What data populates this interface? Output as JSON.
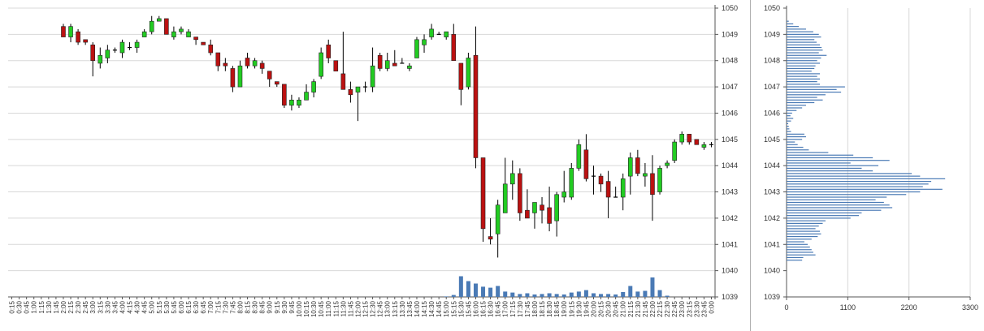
{
  "colors": {
    "up": "#22cc22",
    "down": "#bb1111",
    "wick": "#000000",
    "volume": "#4a7ab5",
    "grid": "#d8d8d8",
    "axis": "#555555"
  },
  "chart_data": [
    {
      "type": "candlestick",
      "title": "",
      "ylim": [
        1039,
        1050
      ],
      "y_ticks": [
        "1039",
        "1040",
        "1041",
        "1042",
        "1043",
        "1044",
        "1045",
        "1046",
        "1047",
        "1048",
        "1049",
        "1050"
      ],
      "y_axis_position": "right",
      "grid": true,
      "x_labels": [
        "0:15",
        "0:30",
        "0:45",
        "1:00",
        "1:15",
        "1:30",
        "1:45",
        "2:00",
        "2:15",
        "2:30",
        "2:45",
        "3:00",
        "3:15",
        "3:30",
        "3:45",
        "4:00",
        "4:15",
        "4:30",
        "4:45",
        "5:00",
        "5:15",
        "5:30",
        "5:45",
        "6:00",
        "6:15",
        "6:30",
        "6:45",
        "7:00",
        "7:15",
        "7:30",
        "7:45",
        "8:00",
        "8:15",
        "8:30",
        "8:45",
        "9:00",
        "9:15",
        "9:30",
        "9:45",
        "10:00",
        "10:15",
        "10:30",
        "10:45",
        "11:00",
        "11:15",
        "11:30",
        "11:45",
        "12:00",
        "12:15",
        "12:30",
        "12:45",
        "13:00",
        "13:15",
        "13:30",
        "13:45",
        "14:00",
        "14:15",
        "14:30",
        "14:45",
        "15:00",
        "15:15",
        "15:30",
        "15:45",
        "16:00",
        "16:15",
        "16:30",
        "16:45",
        "17:00",
        "17:15",
        "17:30",
        "17:45",
        "18:00",
        "18:15",
        "18:30",
        "18:45",
        "19:00",
        "19:15",
        "19:30",
        "19:45",
        "20:00",
        "20:15",
        "20:30",
        "20:45",
        "21:00",
        "21:15",
        "21:30",
        "21:45",
        "22:00",
        "22:15",
        "22:30",
        "22:45",
        "23:00",
        "23:15",
        "23:30",
        "23:45",
        "0:00"
      ],
      "candles": [
        {
          "x": "2:00",
          "o": 1049.3,
          "h": 1049.4,
          "l": 1048.9,
          "c": 1048.9
        },
        {
          "x": "2:15",
          "o": 1048.9,
          "h": 1049.4,
          "l": 1048.7,
          "c": 1049.3
        },
        {
          "x": "2:30",
          "o": 1049.1,
          "h": 1049.2,
          "l": 1048.6,
          "c": 1048.7
        },
        {
          "x": "2:45",
          "o": 1048.8,
          "h": 1048.8,
          "l": 1048.6,
          "c": 1048.7
        },
        {
          "x": "3:00",
          "o": 1048.6,
          "h": 1048.7,
          "l": 1047.4,
          "c": 1048.0
        },
        {
          "x": "3:15",
          "o": 1047.9,
          "h": 1048.5,
          "l": 1047.7,
          "c": 1048.2
        },
        {
          "x": "3:30",
          "o": 1048.1,
          "h": 1048.6,
          "l": 1047.9,
          "c": 1048.4
        },
        {
          "x": "3:45",
          "o": 1048.4,
          "h": 1048.5,
          "l": 1048.3,
          "c": 1048.4
        },
        {
          "x": "4:00",
          "o": 1048.3,
          "h": 1048.8,
          "l": 1048.1,
          "c": 1048.7
        },
        {
          "x": "4:15",
          "o": 1048.5,
          "h": 1048.7,
          "l": 1048.4,
          "c": 1048.5
        },
        {
          "x": "4:30",
          "o": 1048.5,
          "h": 1048.8,
          "l": 1048.3,
          "c": 1048.7
        },
        {
          "x": "4:45",
          "o": 1048.9,
          "h": 1049.2,
          "l": 1048.9,
          "c": 1049.1
        },
        {
          "x": "5:00",
          "o": 1049.1,
          "h": 1049.7,
          "l": 1049.0,
          "c": 1049.5
        },
        {
          "x": "5:15",
          "o": 1049.5,
          "h": 1049.7,
          "l": 1049.5,
          "c": 1049.6
        },
        {
          "x": "5:30",
          "o": 1049.6,
          "h": 1049.6,
          "l": 1049.0,
          "c": 1049.0
        },
        {
          "x": "5:45",
          "o": 1048.9,
          "h": 1049.3,
          "l": 1048.8,
          "c": 1049.1
        },
        {
          "x": "6:00",
          "o": 1049.1,
          "h": 1049.3,
          "l": 1049.0,
          "c": 1049.2
        },
        {
          "x": "6:15",
          "o": 1048.9,
          "h": 1049.2,
          "l": 1048.9,
          "c": 1049.1
        },
        {
          "x": "6:30",
          "o": 1048.9,
          "h": 1048.9,
          "l": 1048.6,
          "c": 1048.8
        },
        {
          "x": "6:45",
          "o": 1048.7,
          "h": 1048.7,
          "l": 1048.6,
          "c": 1048.6
        },
        {
          "x": "7:00",
          "o": 1048.6,
          "h": 1048.8,
          "l": 1048.2,
          "c": 1048.3
        },
        {
          "x": "7:15",
          "o": 1048.3,
          "h": 1048.3,
          "l": 1047.6,
          "c": 1047.8
        },
        {
          "x": "7:30",
          "o": 1047.9,
          "h": 1048.1,
          "l": 1047.6,
          "c": 1047.8
        },
        {
          "x": "7:45",
          "o": 1047.7,
          "h": 1047.8,
          "l": 1046.8,
          "c": 1047.0
        },
        {
          "x": "8:00",
          "o": 1047.0,
          "h": 1048.0,
          "l": 1047.0,
          "c": 1047.8
        },
        {
          "x": "8:15",
          "o": 1048.1,
          "h": 1048.3,
          "l": 1047.7,
          "c": 1047.8
        },
        {
          "x": "8:30",
          "o": 1047.8,
          "h": 1048.1,
          "l": 1047.7,
          "c": 1048.0
        },
        {
          "x": "8:45",
          "o": 1047.9,
          "h": 1048.0,
          "l": 1047.5,
          "c": 1047.7
        },
        {
          "x": "9:00",
          "o": 1047.6,
          "h": 1047.6,
          "l": 1047.0,
          "c": 1047.3
        },
        {
          "x": "9:15",
          "o": 1047.2,
          "h": 1047.2,
          "l": 1047.0,
          "c": 1047.1
        },
        {
          "x": "9:30",
          "o": 1047.1,
          "h": 1047.1,
          "l": 1046.2,
          "c": 1046.3
        },
        {
          "x": "9:45",
          "o": 1046.3,
          "h": 1046.7,
          "l": 1046.1,
          "c": 1046.5
        },
        {
          "x": "10:00",
          "o": 1046.3,
          "h": 1046.6,
          "l": 1046.2,
          "c": 1046.5
        },
        {
          "x": "10:15",
          "o": 1046.5,
          "h": 1047.1,
          "l": 1046.5,
          "c": 1046.8
        },
        {
          "x": "10:30",
          "o": 1046.8,
          "h": 1047.3,
          "l": 1046.6,
          "c": 1047.2
        },
        {
          "x": "10:45",
          "o": 1047.4,
          "h": 1048.5,
          "l": 1047.3,
          "c": 1048.3
        },
        {
          "x": "11:00",
          "o": 1048.6,
          "h": 1048.8,
          "l": 1047.9,
          "c": 1048.1
        },
        {
          "x": "11:15",
          "o": 1048.0,
          "h": 1048.0,
          "l": 1047.6,
          "c": 1047.6
        },
        {
          "x": "11:30",
          "o": 1047.5,
          "h": 1049.1,
          "l": 1046.9,
          "c": 1046.9
        },
        {
          "x": "11:45",
          "o": 1046.9,
          "h": 1047.2,
          "l": 1046.4,
          "c": 1046.7
        },
        {
          "x": "12:00",
          "o": 1046.8,
          "h": 1047.0,
          "l": 1045.7,
          "c": 1047.0
        },
        {
          "x": "12:15",
          "o": 1047.0,
          "h": 1047.2,
          "l": 1046.8,
          "c": 1047.0
        },
        {
          "x": "12:30",
          "o": 1047.0,
          "h": 1048.5,
          "l": 1046.8,
          "c": 1047.8
        },
        {
          "x": "12:45",
          "o": 1048.2,
          "h": 1048.3,
          "l": 1047.6,
          "c": 1047.7
        },
        {
          "x": "13:00",
          "o": 1047.7,
          "h": 1048.3,
          "l": 1047.6,
          "c": 1048.0
        },
        {
          "x": "13:15",
          "o": 1047.9,
          "h": 1048.4,
          "l": 1047.9,
          "c": 1047.8
        },
        {
          "x": "13:30",
          "o": 1047.9,
          "h": 1048.1,
          "l": 1047.9,
          "c": 1047.9
        },
        {
          "x": "13:45",
          "o": 1047.7,
          "h": 1047.9,
          "l": 1047.6,
          "c": 1047.8
        },
        {
          "x": "14:00",
          "o": 1048.1,
          "h": 1048.9,
          "l": 1048.1,
          "c": 1048.8
        },
        {
          "x": "14:15",
          "o": 1048.6,
          "h": 1049.0,
          "l": 1048.3,
          "c": 1048.8
        },
        {
          "x": "14:30",
          "o": 1048.9,
          "h": 1049.4,
          "l": 1048.8,
          "c": 1049.2
        },
        {
          "x": "14:45",
          "o": 1049.0,
          "h": 1049.1,
          "l": 1049.0,
          "c": 1049.0
        },
        {
          "x": "15:00",
          "o": 1048.9,
          "h": 1049.1,
          "l": 1048.8,
          "c": 1049.1
        },
        {
          "x": "15:15",
          "o": 1049.0,
          "h": 1049.4,
          "l": 1048.0,
          "c": 1048.0
        },
        {
          "x": "15:30",
          "o": 1047.9,
          "h": 1047.9,
          "l": 1046.3,
          "c": 1046.9
        },
        {
          "x": "15:45",
          "o": 1047.0,
          "h": 1048.3,
          "l": 1046.9,
          "c": 1048.1
        },
        {
          "x": "16:00",
          "o": 1048.2,
          "h": 1049.3,
          "l": 1043.9,
          "c": 1044.3
        },
        {
          "x": "16:15",
          "o": 1044.3,
          "h": 1044.3,
          "l": 1041.1,
          "c": 1041.6
        },
        {
          "x": "16:30",
          "o": 1041.3,
          "h": 1042.0,
          "l": 1041.0,
          "c": 1041.2
        },
        {
          "x": "16:45",
          "o": 1041.4,
          "h": 1042.7,
          "l": 1040.5,
          "c": 1042.5
        },
        {
          "x": "17:00",
          "o": 1042.2,
          "h": 1044.3,
          "l": 1042.2,
          "c": 1043.3
        },
        {
          "x": "17:15",
          "o": 1043.3,
          "h": 1044.2,
          "l": 1042.7,
          "c": 1043.7
        },
        {
          "x": "17:30",
          "o": 1043.7,
          "h": 1043.9,
          "l": 1041.9,
          "c": 1042.2
        },
        {
          "x": "17:45",
          "o": 1042.3,
          "h": 1043.1,
          "l": 1042.0,
          "c": 1042.0
        },
        {
          "x": "18:00",
          "o": 1042.2,
          "h": 1042.6,
          "l": 1041.6,
          "c": 1042.6
        },
        {
          "x": "18:15",
          "o": 1042.5,
          "h": 1042.8,
          "l": 1041.8,
          "c": 1042.3
        },
        {
          "x": "18:30",
          "o": 1042.4,
          "h": 1043.2,
          "l": 1041.5,
          "c": 1041.8
        },
        {
          "x": "18:45",
          "o": 1041.9,
          "h": 1043.0,
          "l": 1041.3,
          "c": 1042.9
        },
        {
          "x": "19:00",
          "o": 1042.8,
          "h": 1043.8,
          "l": 1042.6,
          "c": 1043.0
        },
        {
          "x": "19:15",
          "o": 1042.8,
          "h": 1044.1,
          "l": 1042.7,
          "c": 1043.9
        },
        {
          "x": "19:30",
          "o": 1043.9,
          "h": 1045.0,
          "l": 1043.8,
          "c": 1044.8
        },
        {
          "x": "19:45",
          "o": 1044.6,
          "h": 1045.2,
          "l": 1043.4,
          "c": 1043.5
        },
        {
          "x": "20:00",
          "o": 1043.6,
          "h": 1044.0,
          "l": 1042.9,
          "c": 1043.6
        },
        {
          "x": "20:15",
          "o": 1043.6,
          "h": 1043.7,
          "l": 1043.0,
          "c": 1043.3
        },
        {
          "x": "20:30",
          "o": 1043.4,
          "h": 1043.8,
          "l": 1042.0,
          "c": 1042.8
        },
        {
          "x": "20:45",
          "o": 1042.8,
          "h": 1043.2,
          "l": 1042.8,
          "c": 1042.8
        },
        {
          "x": "21:00",
          "o": 1042.8,
          "h": 1043.7,
          "l": 1042.3,
          "c": 1043.5
        },
        {
          "x": "21:15",
          "o": 1043.6,
          "h": 1044.5,
          "l": 1042.9,
          "c": 1044.3
        },
        {
          "x": "21:30",
          "o": 1044.3,
          "h": 1044.6,
          "l": 1043.6,
          "c": 1043.7
        },
        {
          "x": "21:45",
          "o": 1043.6,
          "h": 1044.1,
          "l": 1043.2,
          "c": 1043.7
        },
        {
          "x": "22:00",
          "o": 1043.7,
          "h": 1044.4,
          "l": 1041.9,
          "c": 1042.9
        },
        {
          "x": "22:15",
          "o": 1043.0,
          "h": 1044.0,
          "l": 1042.9,
          "c": 1043.9
        },
        {
          "x": "22:30",
          "o": 1044.0,
          "h": 1044.2,
          "l": 1043.9,
          "c": 1044.1
        },
        {
          "x": "22:45",
          "o": 1044.2,
          "h": 1045.0,
          "l": 1044.1,
          "c": 1044.9
        },
        {
          "x": "23:00",
          "o": 1044.9,
          "h": 1045.3,
          "l": 1044.8,
          "c": 1045.2
        },
        {
          "x": "23:15",
          "o": 1045.2,
          "h": 1045.2,
          "l": 1044.8,
          "c": 1044.9
        },
        {
          "x": "23:30",
          "o": 1045.0,
          "h": 1045.0,
          "l": 1044.8,
          "c": 1044.8
        },
        {
          "x": "23:45",
          "o": 1044.7,
          "h": 1044.9,
          "l": 1044.6,
          "c": 1044.8
        },
        {
          "x": "0:00",
          "o": 1044.8,
          "h": 1044.9,
          "l": 1044.7,
          "c": 1044.8
        }
      ],
      "volume": {
        "x": [
          "15:00",
          "15:15",
          "15:30",
          "15:45",
          "16:00",
          "16:15",
          "16:30",
          "16:45",
          "17:00",
          "17:15",
          "17:30",
          "17:45",
          "18:00",
          "18:15",
          "18:30",
          "18:45",
          "19:00",
          "19:15",
          "19:30",
          "19:45",
          "20:00",
          "20:15",
          "20:30",
          "20:45",
          "21:00",
          "21:15",
          "21:30",
          "21:45",
          "22:00",
          "22:15",
          "22:30"
        ],
        "values": [
          2,
          8,
          85,
          65,
          55,
          42,
          38,
          45,
          22,
          18,
          12,
          15,
          10,
          12,
          15,
          12,
          10,
          18,
          22,
          28,
          15,
          12,
          12,
          10,
          20,
          45,
          22,
          25,
          80,
          28,
          5
        ]
      }
    },
    {
      "type": "bar",
      "orientation": "horizontal",
      "title": "",
      "xlim": [
        0,
        3300
      ],
      "x_ticks": [
        "0",
        "1100",
        "2200",
        "3300"
      ],
      "ylim": [
        1039,
        1050
      ],
      "y_ticks": [
        "1039",
        "1040",
        "1041",
        "1042",
        "1043",
        "1044",
        "1045",
        "1046",
        "1047",
        "1048",
        "1049",
        "1050"
      ],
      "grid": true,
      "price_levels": [
        1040.4,
        1040.5,
        1040.6,
        1040.7,
        1040.8,
        1040.9,
        1041.0,
        1041.1,
        1041.2,
        1041.3,
        1041.4,
        1041.5,
        1041.6,
        1041.7,
        1041.8,
        1041.9,
        1042.0,
        1042.1,
        1042.2,
        1042.3,
        1042.4,
        1042.5,
        1042.6,
        1042.7,
        1042.8,
        1042.9,
        1043.0,
        1043.1,
        1043.2,
        1043.3,
        1043.4,
        1043.5,
        1043.6,
        1043.7,
        1043.8,
        1043.9,
        1044.0,
        1044.1,
        1044.2,
        1044.3,
        1044.4,
        1044.5,
        1044.6,
        1044.7,
        1044.8,
        1044.9,
        1045.0,
        1045.1,
        1045.2,
        1045.3,
        1045.4,
        1045.5,
        1045.6,
        1045.7,
        1045.8,
        1045.9,
        1046.0,
        1046.1,
        1046.2,
        1046.3,
        1046.4,
        1046.5,
        1046.6,
        1046.7,
        1046.8,
        1046.9,
        1047.0,
        1047.1,
        1047.2,
        1047.3,
        1047.4,
        1047.5,
        1047.6,
        1047.7,
        1047.8,
        1047.9,
        1048.0,
        1048.1,
        1048.2,
        1048.3,
        1048.4,
        1048.5,
        1048.6,
        1048.7,
        1048.8,
        1048.9,
        1049.0,
        1049.1,
        1049.2,
        1049.3,
        1049.4,
        1049.5
      ],
      "values": [
        280,
        300,
        520,
        480,
        450,
        420,
        380,
        320,
        450,
        560,
        620,
        600,
        520,
        580,
        650,
        700,
        1150,
        1300,
        1350,
        1700,
        1900,
        1850,
        1750,
        1600,
        1800,
        2150,
        2400,
        2800,
        2450,
        2550,
        2600,
        2850,
        2400,
        2250,
        1550,
        1350,
        1650,
        1150,
        1850,
        1550,
        1200,
        750,
        400,
        300,
        200,
        150,
        280,
        350,
        320,
        80,
        50,
        40,
        30,
        80,
        120,
        70,
        100,
        180,
        280,
        350,
        500,
        650,
        550,
        700,
        980,
        900,
        1050,
        600,
        550,
        600,
        550,
        600,
        450,
        500,
        520,
        600,
        550,
        620,
        720,
        580,
        650,
        630,
        600,
        540,
        500,
        620,
        580,
        480,
        350,
        220,
        120,
        40
      ]
    }
  ]
}
